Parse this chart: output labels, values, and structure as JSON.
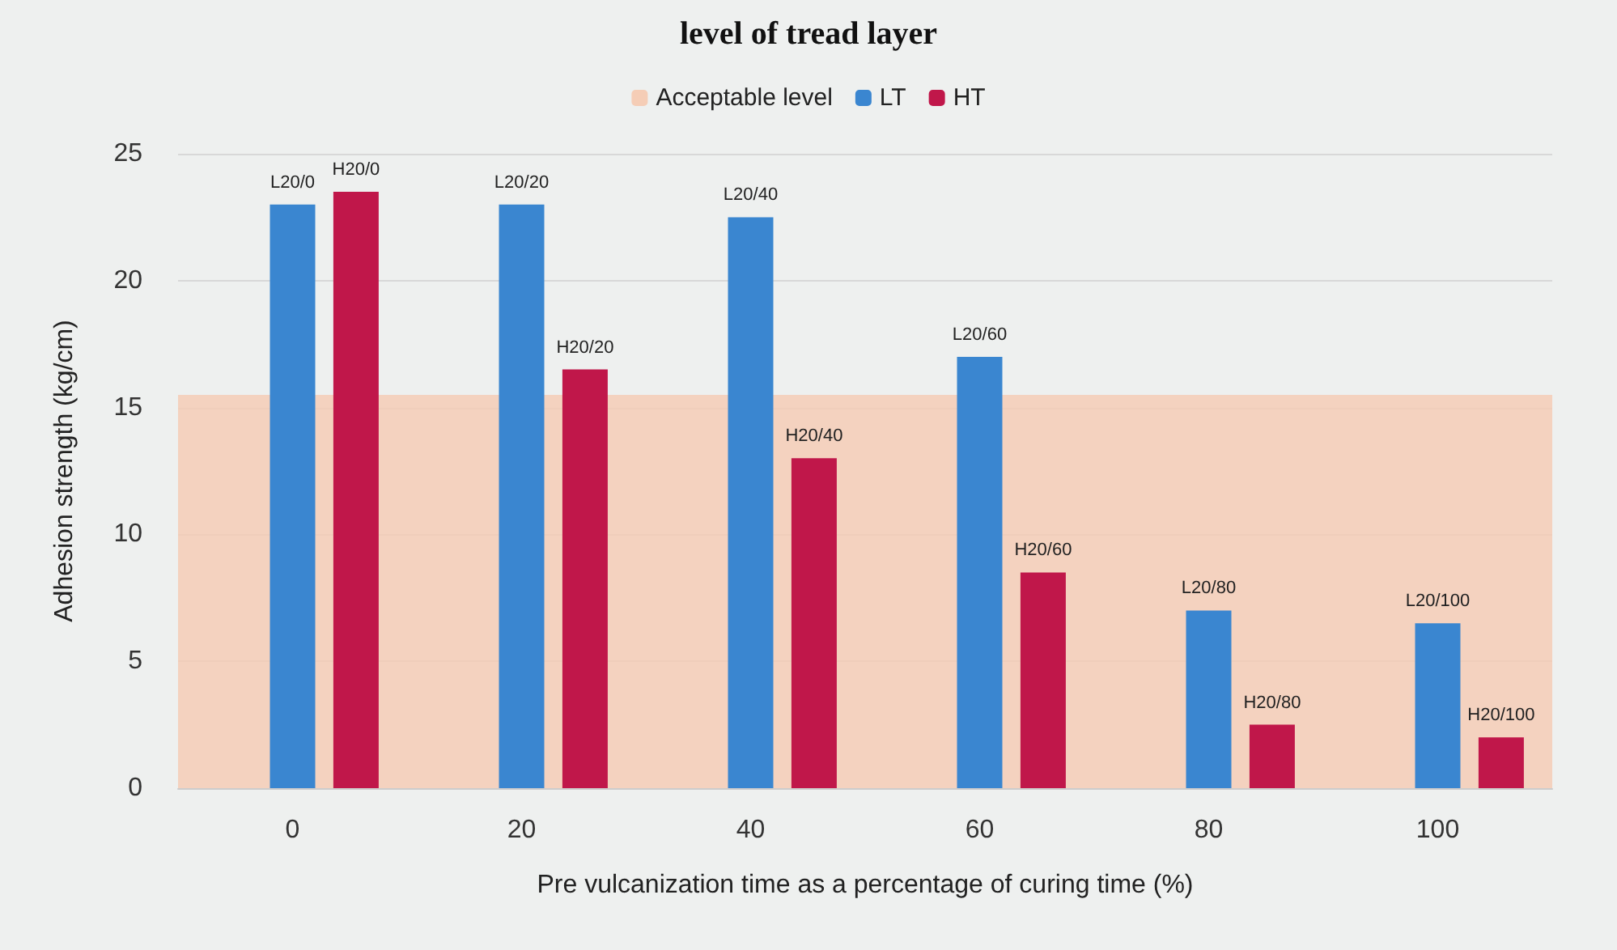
{
  "chart_data": {
    "type": "bar",
    "title": "level of tread layer",
    "xlabel": "Pre vulcanization time as a percentage of curing time (%)",
    "ylabel": "Adhesion strength (kg/cm)",
    "categories": [
      "0",
      "20",
      "40",
      "60",
      "80",
      "100"
    ],
    "series": [
      {
        "name": "LT",
        "color": "#3a86d0",
        "values": [
          23,
          23,
          22.5,
          17,
          7,
          6.5
        ],
        "value_labels": [
          "L20/0",
          "L20/20",
          "L20/40",
          "L20/60",
          "L20/80",
          "L20/100"
        ]
      },
      {
        "name": "HT",
        "color": "#c0174a",
        "values": [
          23.5,
          16.5,
          13,
          8.5,
          2.5,
          2
        ],
        "value_labels": [
          "H20/0",
          "H20/20",
          "H20/40",
          "H20/60",
          "H20/80",
          "H20/100"
        ]
      }
    ],
    "bands": [
      {
        "axis": "y",
        "from": 0,
        "to": 15.5,
        "label": "Acceptable level",
        "color": "#f5cdb6"
      }
    ],
    "ylim": [
      0,
      25
    ],
    "yticks": [
      0,
      5,
      10,
      15,
      20,
      25
    ],
    "grid": "y",
    "legend": "top"
  }
}
